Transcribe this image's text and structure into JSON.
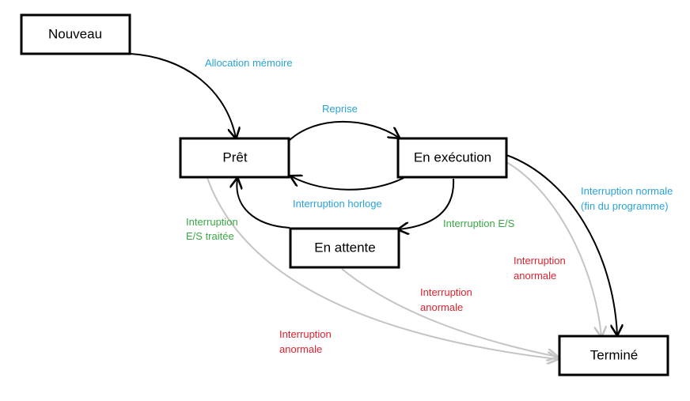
{
  "states": {
    "nouveau": "Nouveau",
    "pret": "Prêt",
    "execution": "En exécution",
    "attente": "En attente",
    "termine": "Terminé"
  },
  "transitions": {
    "allocation": "Allocation mémoire",
    "reprise": "Reprise",
    "horloge": "Interruption horloge",
    "es": "Interruption E/S",
    "es_traitee_1": "Interruption",
    "es_traitee_2": "E/S traitée",
    "normale_1": "Interruption normale",
    "normale_2": "(fin du programme)",
    "anormale_exec_1": "Interruption",
    "anormale_exec_2": "anormale",
    "anormale_attente_1": "Interruption",
    "anormale_attente_2": "anormale",
    "anormale_pret_1": "Interruption",
    "anormale_pret_2": "anormale"
  },
  "colors": {
    "state_border": "#000000",
    "label_blue": "#29a3d6",
    "label_green": "#3aa845",
    "label_red": "#d9232e",
    "edge_gray": "#c4c4c4"
  }
}
